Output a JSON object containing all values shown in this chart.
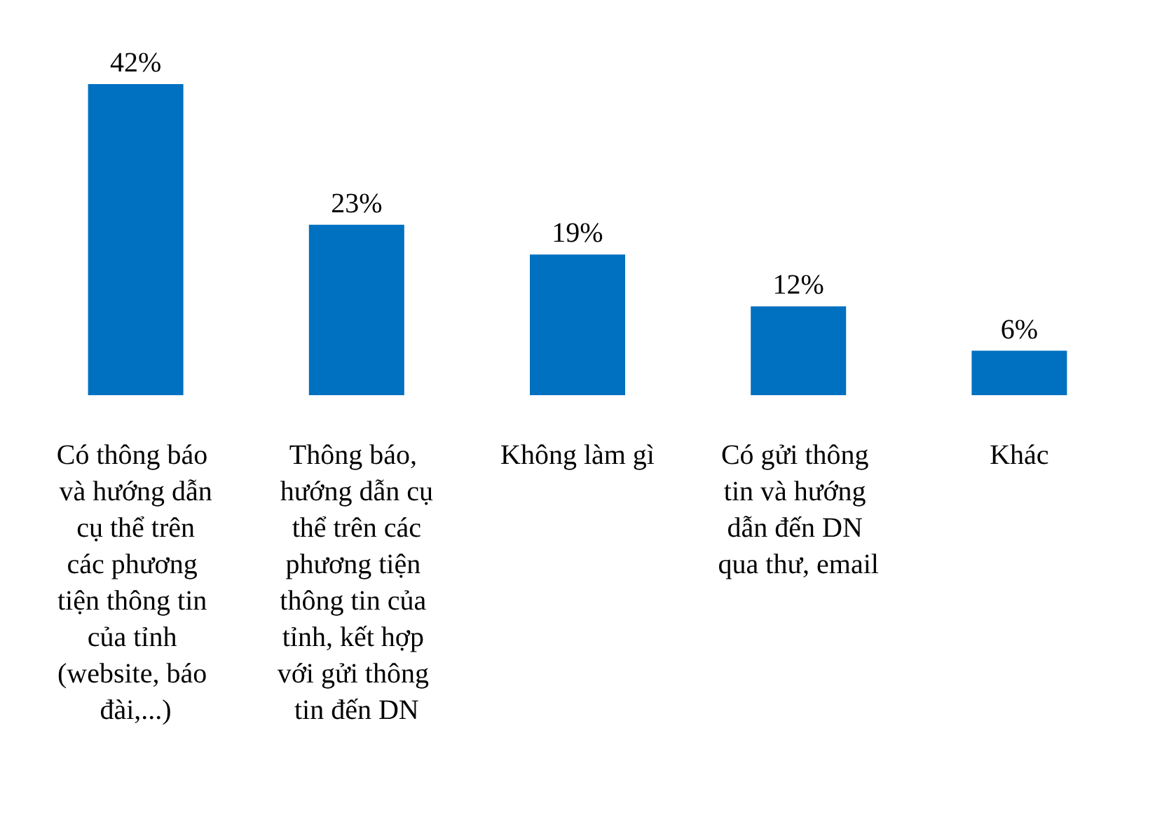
{
  "chart_data": {
    "type": "bar",
    "categories": [
      "Có thông báo và hướng dẫn cụ thể trên các phương tiện thông tin của tỉnh (website, báo đài,...)",
      "Thông báo, hướng dẫn cụ thể trên các phương tiện thông tin của tỉnh, kết hợp với gửi thông tin đến DN",
      "Không làm gì",
      "Có gửi thông tin và hướng dẫn đến DN qua thư, email",
      "Khác"
    ],
    "values": [
      42,
      23,
      19,
      12,
      6
    ],
    "value_labels": [
      "42%",
      "23%",
      "19%",
      "12%",
      "6%"
    ],
    "color": "#0070c0"
  }
}
